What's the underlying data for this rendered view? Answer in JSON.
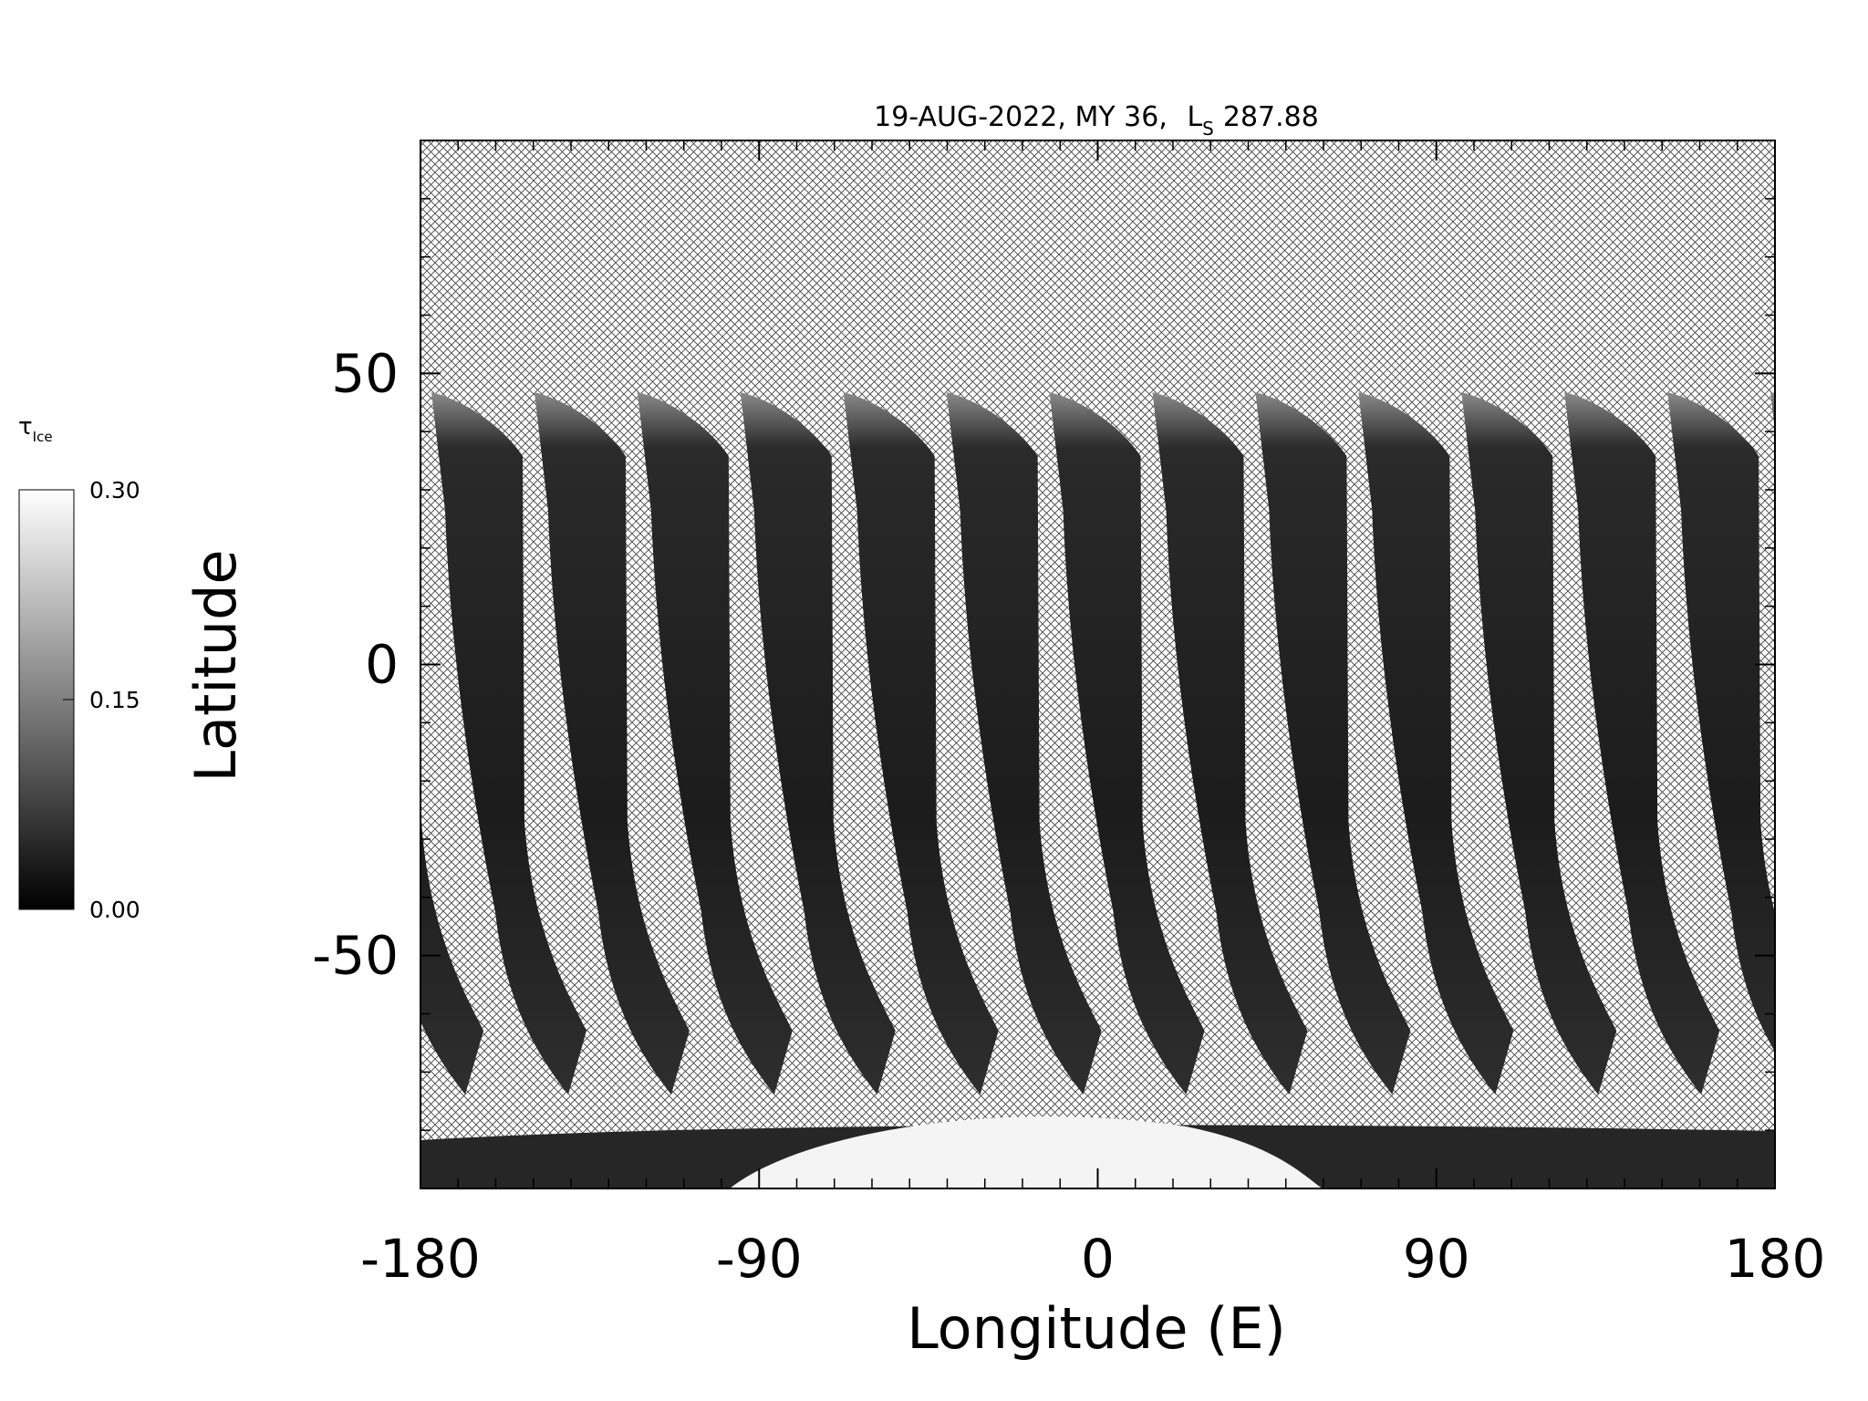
{
  "chart_data": {
    "type": "map",
    "title_parts": [
      "19-AUG-2022, MY 36,",
      "L",
      "S",
      "287.88"
    ],
    "x_label": "Longitude (E)",
    "y_label": "Latitude",
    "xlim": [
      -180,
      180
    ],
    "xticks": [
      -180,
      -90,
      0,
      90,
      180
    ],
    "xminorticks": [
      -170,
      -160,
      -150,
      -140,
      -130,
      -120,
      -110,
      -100,
      -80,
      -70,
      -60,
      -50,
      -40,
      -30,
      -20,
      -10,
      10,
      20,
      30,
      40,
      50,
      60,
      70,
      80,
      100,
      110,
      120,
      130,
      140,
      150,
      160,
      170
    ],
    "ylim": [
      -90,
      90
    ],
    "yticks": [
      -50,
      0,
      50
    ],
    "yminorticks": [
      -80,
      -70,
      -60,
      -40,
      -30,
      -20,
      -10,
      10,
      20,
      30,
      40,
      60,
      70,
      80
    ],
    "colorbar": {
      "label": "τ",
      "label_subscript": "Ice",
      "lim": [
        0,
        0.3
      ],
      "ticks": [
        {
          "value": 0,
          "label": "0.00"
        },
        {
          "value": 0.15,
          "label": "0.15"
        },
        {
          "value": 0.3,
          "label": "0.30"
        }
      ],
      "colors": [
        "#000000",
        "#ffffff"
      ]
    }
  }
}
